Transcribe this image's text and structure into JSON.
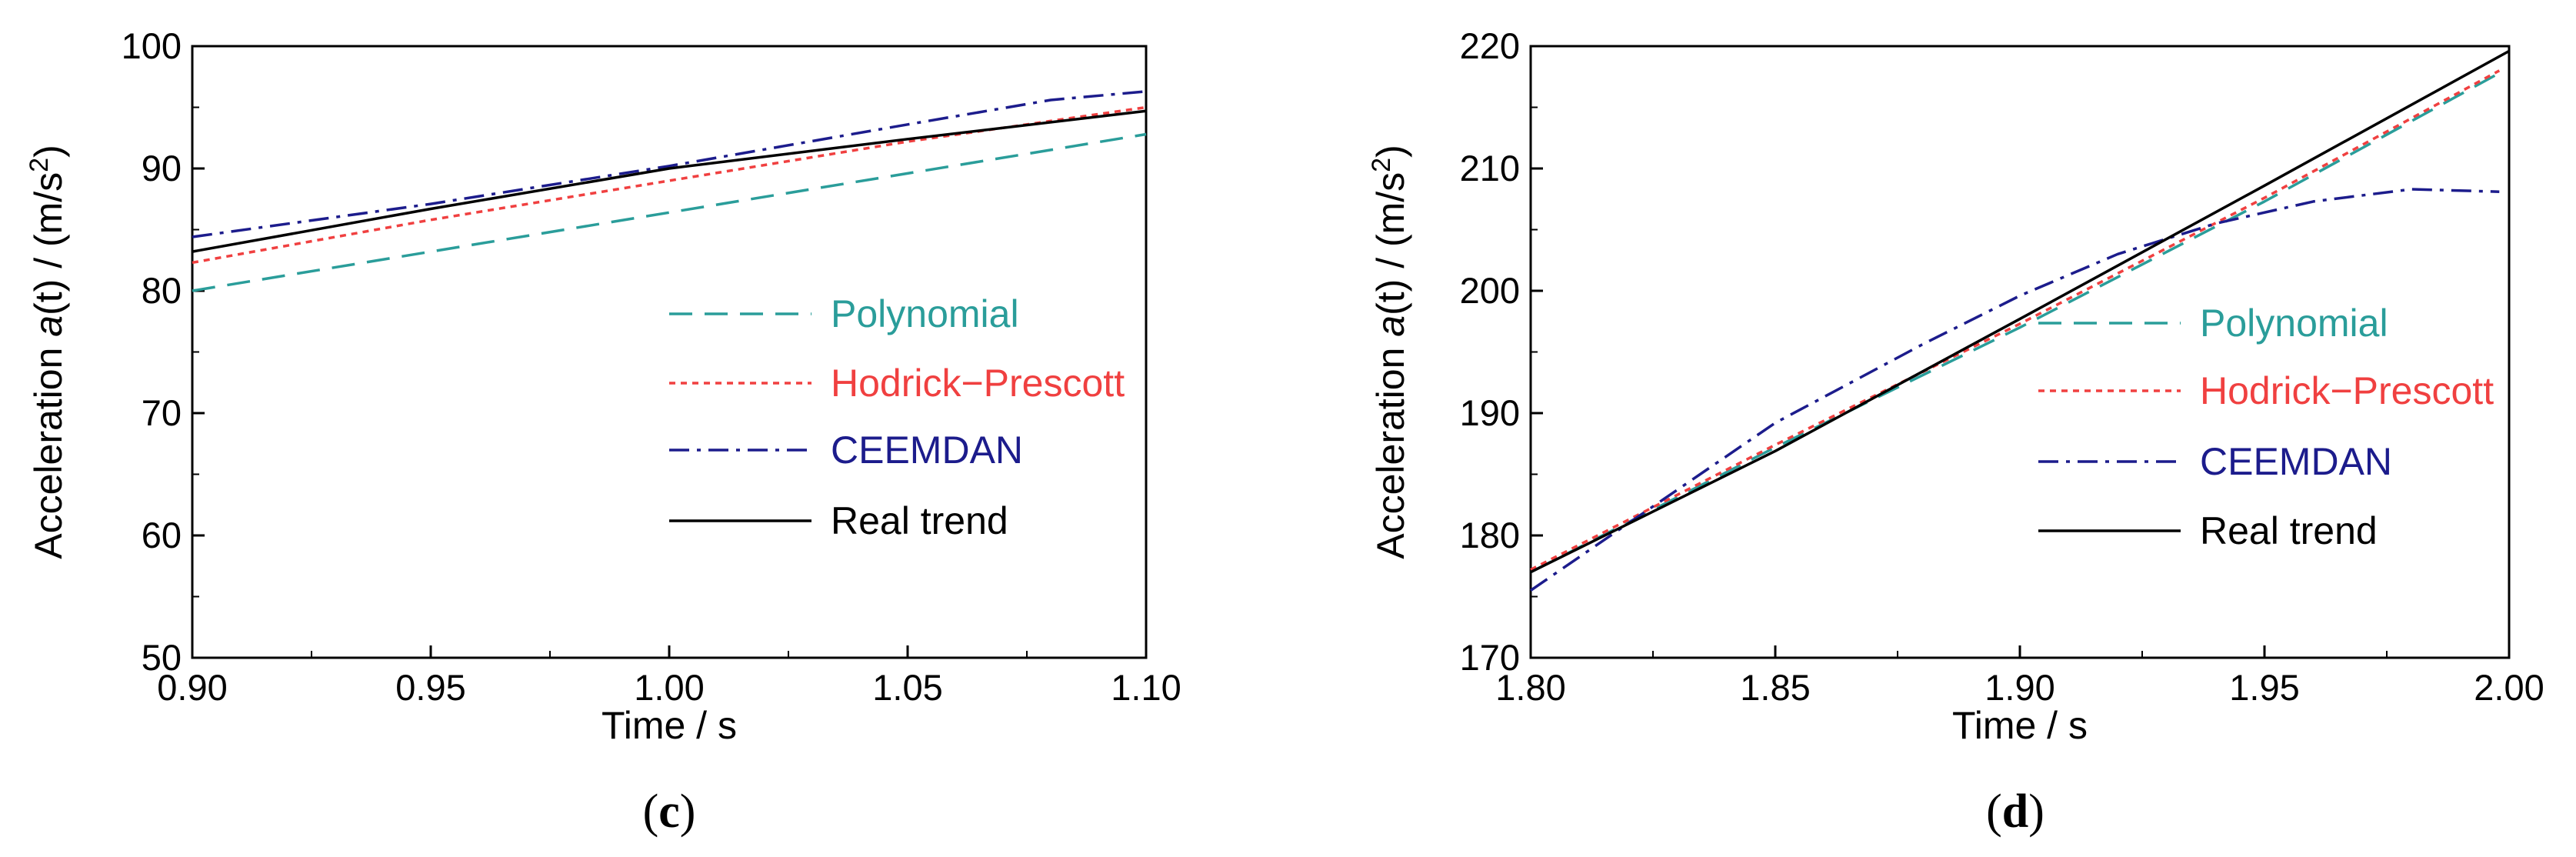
{
  "chart_data": [
    {
      "type": "line",
      "panel_label": "c",
      "xlabel": "Time / s",
      "ylabel": {
        "prefix": "Acceleration ",
        "var": "a",
        "mid": "(t) / (m/s",
        "sup": "2",
        "suffix": ")"
      },
      "xlim": [
        0.9,
        1.1
      ],
      "ylim": [
        50,
        100
      ],
      "xticks": [
        0.9,
        0.95,
        1.0,
        1.05,
        1.1
      ],
      "xtick_labels": [
        "0.90",
        "0.95",
        "1.00",
        "1.05",
        "1.10"
      ],
      "yticks": [
        50,
        60,
        70,
        80,
        90,
        100
      ],
      "ytick_labels": [
        "50",
        "60",
        "70",
        "80",
        "90",
        "100"
      ],
      "series": [
        {
          "name": "Polynomial",
          "color": "#2a9d9a",
          "dash": "dashed",
          "x": [
            0.9,
            1.1
          ],
          "y": [
            80.0,
            92.8
          ]
        },
        {
          "name": "Hodrick−Prescott",
          "color": "#f04040",
          "dash": "dotted",
          "x": [
            0.9,
            0.95,
            1.0,
            1.05,
            1.1
          ],
          "y": [
            82.3,
            85.8,
            89.0,
            92.2,
            95.0
          ]
        },
        {
          "name": "CEEMDAN",
          "color": "#1c1c8c",
          "dash": "dashdot",
          "x": [
            0.9,
            0.95,
            1.0,
            1.05,
            1.08,
            1.1
          ],
          "y": [
            84.4,
            87.1,
            90.2,
            93.6,
            95.6,
            96.3
          ]
        },
        {
          "name": "Real trend",
          "color": "#000000",
          "dash": "solid",
          "x": [
            0.9,
            0.95,
            1.0,
            1.05,
            1.1
          ],
          "y": [
            83.2,
            86.7,
            90.0,
            92.4,
            94.7
          ]
        }
      ]
    },
    {
      "type": "line",
      "panel_label": "d",
      "xlabel": "Time / s",
      "ylabel": {
        "prefix": "Acceleration ",
        "var": "a",
        "mid": "(t) / (m/s",
        "sup": "2",
        "suffix": ")"
      },
      "xlim": [
        1.8,
        2.0
      ],
      "ylim": [
        170,
        220
      ],
      "xticks": [
        1.8,
        1.85,
        1.9,
        1.95,
        2.0
      ],
      "xtick_labels": [
        "1.80",
        "1.85",
        "1.90",
        "1.95",
        "2.00"
      ],
      "yticks": [
        170,
        180,
        190,
        200,
        210,
        220
      ],
      "ytick_labels": [
        "170",
        "180",
        "190",
        "200",
        "210",
        "220"
      ],
      "series": [
        {
          "name": "Polynomial",
          "color": "#2a9d9a",
          "dash": "dashed",
          "x": [
            1.8,
            1.85,
            1.9,
            1.95,
            1.998
          ],
          "y": [
            177.0,
            187.2,
            197.0,
            207.3,
            217.8
          ]
        },
        {
          "name": "Hodrick−Prescott",
          "color": "#f04040",
          "dash": "dotted",
          "x": [
            1.8,
            1.85,
            1.9,
            1.95,
            1.998
          ],
          "y": [
            177.2,
            187.4,
            197.3,
            207.6,
            218.0
          ]
        },
        {
          "name": "CEEMDAN",
          "color": "#1c1c8c",
          "dash": "dashdot",
          "x": [
            1.8,
            1.82,
            1.85,
            1.88,
            1.9,
            1.92,
            1.94,
            1.96,
            1.98,
            1.998
          ],
          "y": [
            175.5,
            181.0,
            189.2,
            195.6,
            199.6,
            203.0,
            205.5,
            207.3,
            208.3,
            208.1
          ]
        },
        {
          "name": "Real trend",
          "color": "#000000",
          "dash": "solid",
          "x": [
            1.8,
            1.85,
            1.9,
            1.95,
            2.0
          ],
          "y": [
            177.0,
            186.9,
            197.7,
            208.6,
            219.6
          ]
        }
      ]
    }
  ]
}
